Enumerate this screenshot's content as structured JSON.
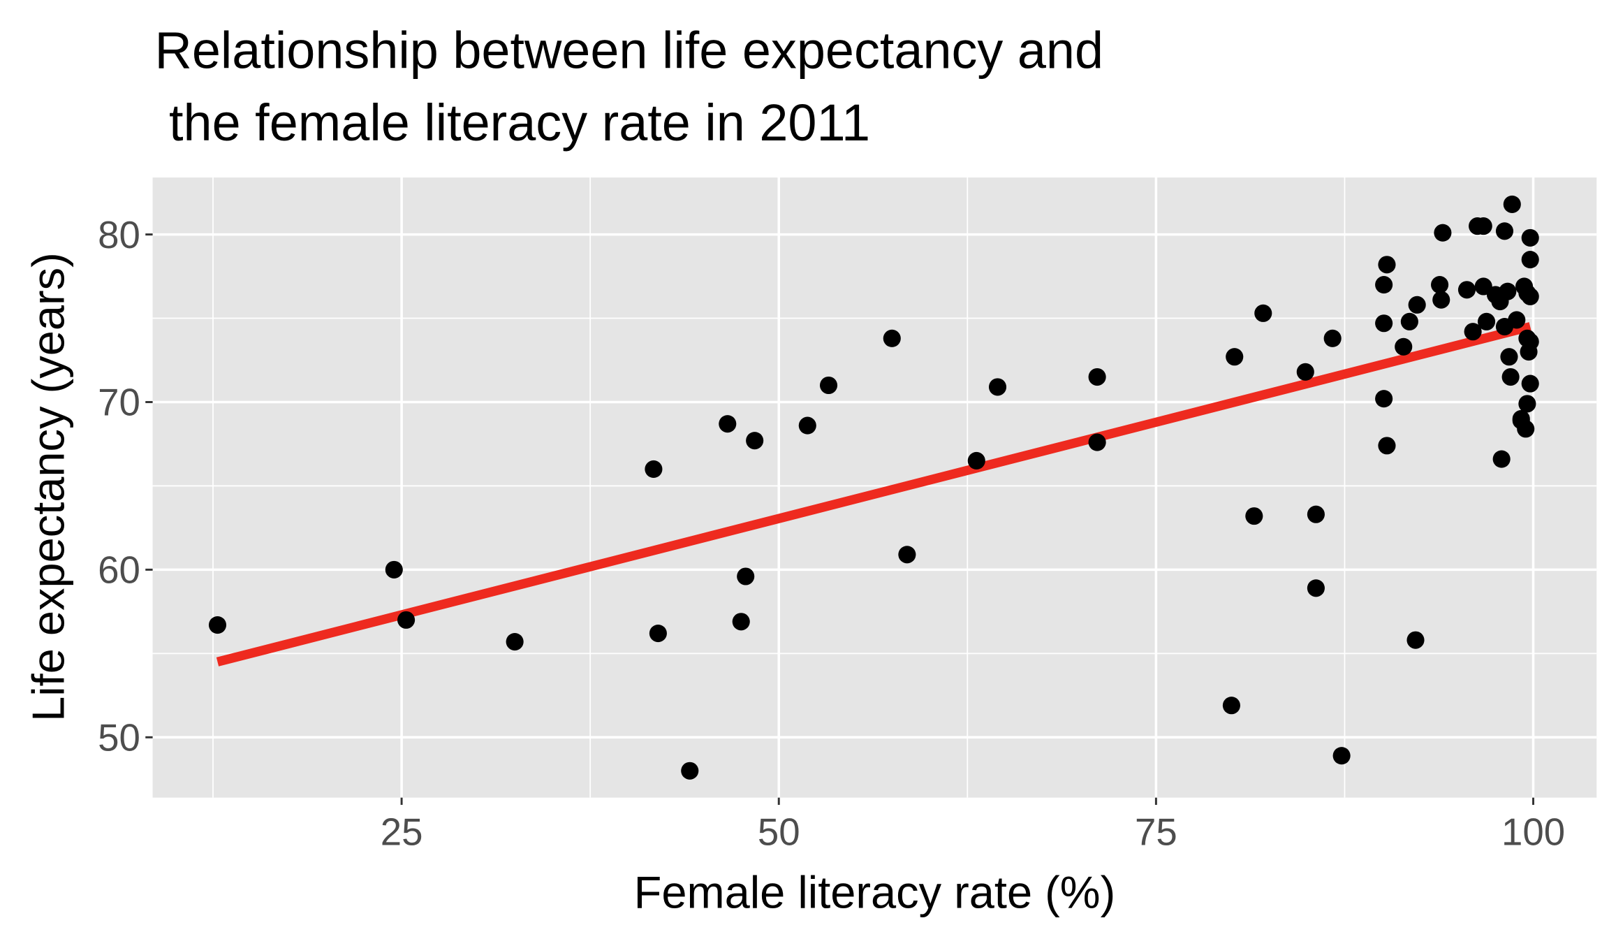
{
  "chart_data": {
    "type": "scatter",
    "title_lines": [
      "Relationship between life expectancy and",
      " the female literacy rate in 2011"
    ],
    "xlabel": "Female literacy rate (%)",
    "ylabel": "Life expectancy (years)",
    "xlim": [
      8.5,
      104.2
    ],
    "ylim": [
      46.4,
      83.4
    ],
    "x_ticks": [
      25,
      50,
      75,
      100
    ],
    "x_tick_labels": [
      "25",
      "50",
      "75",
      "100"
    ],
    "y_ticks": [
      50,
      60,
      70,
      80
    ],
    "y_tick_labels": [
      "50",
      "60",
      "70",
      "80"
    ],
    "grid": true,
    "colors": {
      "panel": "#e5e5e5",
      "grid": "#ffffff",
      "points": "#000000",
      "fit_line": "#ee2a1f",
      "tick_text": "#4d4d4d"
    },
    "points": [
      [
        12.8,
        56.7
      ],
      [
        24.5,
        60.0
      ],
      [
        25.3,
        57.0
      ],
      [
        32.5,
        55.7
      ],
      [
        41.7,
        66.0
      ],
      [
        42.0,
        56.2
      ],
      [
        44.1,
        48.0
      ],
      [
        46.6,
        68.7
      ],
      [
        48.4,
        67.7
      ],
      [
        47.8,
        59.6
      ],
      [
        47.5,
        56.9
      ],
      [
        51.9,
        68.6
      ],
      [
        53.3,
        71.0
      ],
      [
        57.5,
        73.8
      ],
      [
        58.5,
        60.9
      ],
      [
        63.1,
        66.5
      ],
      [
        64.5,
        70.9
      ],
      [
        71.1,
        71.5
      ],
      [
        71.1,
        67.6
      ],
      [
        80.0,
        51.9
      ],
      [
        80.2,
        72.7
      ],
      [
        81.5,
        63.2
      ],
      [
        82.1,
        75.3
      ],
      [
        84.9,
        71.8
      ],
      [
        85.6,
        63.3
      ],
      [
        85.6,
        58.9
      ],
      [
        86.7,
        73.8
      ],
      [
        87.3,
        48.9
      ],
      [
        90.3,
        78.2
      ],
      [
        90.1,
        77.0
      ],
      [
        90.1,
        74.7
      ],
      [
        90.1,
        70.2
      ],
      [
        90.3,
        67.4
      ],
      [
        91.4,
        73.3
      ],
      [
        91.8,
        74.8
      ],
      [
        92.2,
        55.8
      ],
      [
        92.3,
        75.8
      ],
      [
        93.8,
        77.0
      ],
      [
        94.0,
        80.1
      ],
      [
        93.9,
        76.1
      ],
      [
        95.6,
        76.7
      ],
      [
        96.0,
        74.2
      ],
      [
        96.3,
        80.5
      ],
      [
        96.7,
        80.5
      ],
      [
        96.7,
        76.9
      ],
      [
        96.9,
        74.8
      ],
      [
        97.5,
        76.4
      ],
      [
        97.8,
        76.0
      ],
      [
        98.1,
        74.5
      ],
      [
        98.1,
        80.2
      ],
      [
        98.3,
        76.6
      ],
      [
        98.4,
        72.7
      ],
      [
        98.5,
        71.5
      ],
      [
        98.6,
        81.8
      ],
      [
        98.9,
        74.9
      ],
      [
        99.2,
        69.0
      ],
      [
        99.4,
        76.9
      ],
      [
        99.6,
        73.8
      ],
      [
        97.9,
        66.6
      ],
      [
        99.6,
        76.5
      ],
      [
        99.8,
        79.8
      ],
      [
        99.8,
        78.5
      ],
      [
        99.8,
        76.3
      ],
      [
        99.8,
        73.6
      ],
      [
        99.7,
        73.0
      ],
      [
        99.8,
        71.1
      ],
      [
        99.6,
        69.9
      ],
      [
        99.5,
        68.4
      ],
      [
        99.2,
        68.9
      ]
    ],
    "fit_line": {
      "x": [
        12.8,
        99.8
      ],
      "y": [
        54.5,
        74.5
      ]
    }
  }
}
